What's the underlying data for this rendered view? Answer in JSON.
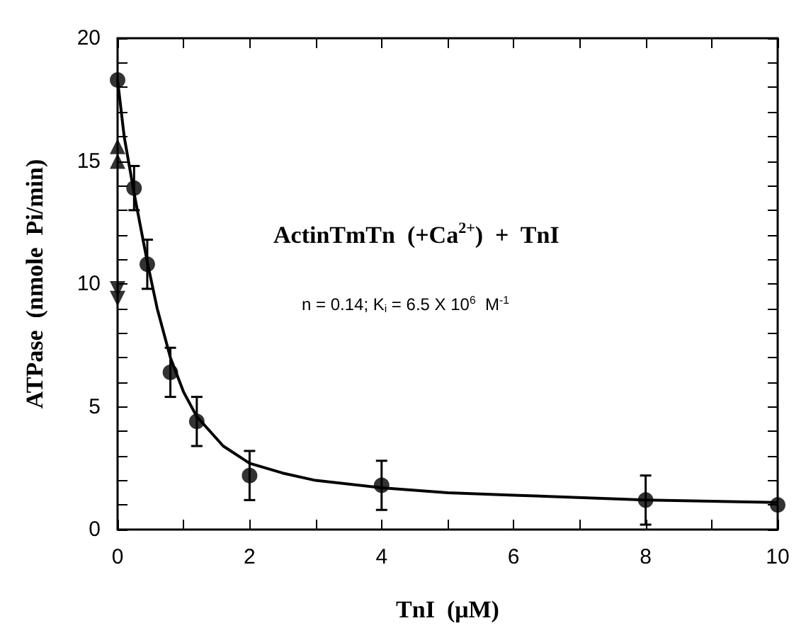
{
  "chart_data": {
    "type": "scatter",
    "xlabel": "TnI  (μM)",
    "ylabel": "ATPase  (nmole  Pi/min)",
    "annotations": [
      "ActinTmTn  (+Ca$^{2+}$)  +  TnI",
      "n = 0.14; K$_{i}$ = 6.5 X 10$^{6}$  M$^{-1}$"
    ],
    "xlim": [
      0,
      10
    ],
    "xticks": [
      0,
      2,
      4,
      6,
      8,
      10
    ],
    "ylim": [
      0,
      20
    ],
    "yticks": [
      0,
      5,
      10,
      15,
      20
    ],
    "grid": false,
    "series": [
      {
        "color": "#000000",
        "marker": "circle",
        "x": [
          0,
          0.25,
          0.45,
          0.8,
          1.2,
          2,
          4,
          8,
          10
        ],
        "values": [
          18.3,
          13.9,
          10.8,
          6.4,
          4.4,
          2.2,
          1.8,
          1.2,
          1.0
        ],
        "errors": [
          null,
          0.9,
          1.0,
          1.0,
          1.0,
          1.0,
          1.0,
          1.0,
          null
        ]
      },
      {
        "color": "#000000",
        "marker": "triangle",
        "x": [
          0,
          0
        ],
        "values": [
          15.6,
          15.0
        ]
      },
      {
        "color": "#000000",
        "marker": "triangle-down",
        "x": [
          0,
          0
        ],
        "values": [
          9.8,
          9.4
        ]
      },
      {
        "type": "line",
        "color": "#000000",
        "marker": "none",
        "line_style": "solid",
        "x": [
          0,
          0.1,
          0.25,
          0.45,
          0.6,
          0.8,
          1.0,
          1.2,
          1.6,
          2,
          2.5,
          3,
          4,
          5,
          6,
          8,
          10
        ],
        "values": [
          18.3,
          16.0,
          13.7,
          10.9,
          9.0,
          7.0,
          5.6,
          4.6,
          3.4,
          2.7,
          2.3,
          2.0,
          1.7,
          1.5,
          1.4,
          1.2,
          1.1
        ]
      }
    ]
  }
}
